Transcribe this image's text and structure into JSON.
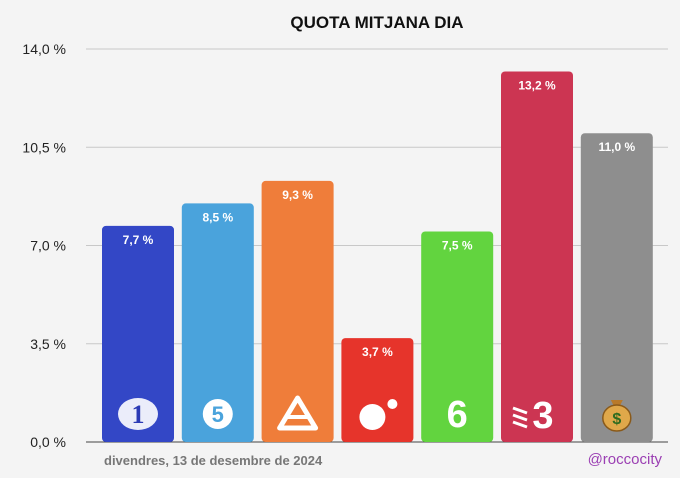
{
  "footer": {
    "date": "divendres, 13 de desembre de 2024",
    "handle": "@roccocity"
  },
  "chart_data": {
    "type": "bar",
    "title": "QUOTA MITJANA DIA",
    "xlabel": "",
    "ylabel": "",
    "ylim": [
      0,
      14
    ],
    "y_ticks": [
      0,
      3.5,
      7,
      10.5,
      14
    ],
    "y_tick_labels": [
      "0,0 %",
      "3,5 %",
      "7,0 %",
      "10,5 %",
      "14,0 %"
    ],
    "grid": true,
    "legend": "none",
    "bars": [
      {
        "value": 7.7,
        "label": "7,7 %",
        "color": "#3347c6",
        "icon": "la-1-logo-icon"
      },
      {
        "value": 8.5,
        "label": "8,5 %",
        "color": "#4aa3dc",
        "icon": "telecinco-logo-icon"
      },
      {
        "value": 9.3,
        "label": "9,3 %",
        "color": "#ef7d3a",
        "icon": "antena-3-logo-icon"
      },
      {
        "value": 3.7,
        "label": "3,7 %",
        "color": "#e6342b",
        "icon": "cuatro-logo-icon"
      },
      {
        "value": 7.5,
        "label": "7,5 %",
        "color": "#62d43f",
        "icon": "la-sexta-logo-icon"
      },
      {
        "value": 13.2,
        "label": "13,2 %",
        "color": "#cc3552",
        "icon": "tv3-logo-icon"
      },
      {
        "value": 11.0,
        "label": "11,0 %",
        "color": "#8e8e8e",
        "icon": "money-bag-icon"
      }
    ]
  }
}
